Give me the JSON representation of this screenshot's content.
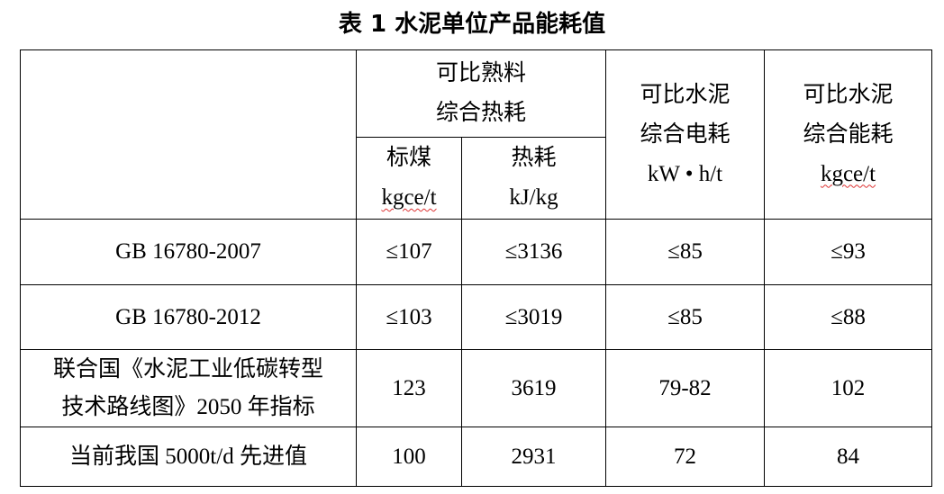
{
  "title": "表 1  水泥单位产品能耗值",
  "table": {
    "header": {
      "clinker": [
        "可比熟料",
        "综合热耗"
      ],
      "clinker_sub": [
        [
          "标煤",
          "kgce/t"
        ],
        [
          "热耗",
          "kJ/kg"
        ]
      ],
      "cement_power": [
        "可比水泥",
        "综合电耗",
        "kW • h/t"
      ],
      "cement_energy": [
        "可比水泥",
        "综合能耗",
        "kgce/t"
      ]
    },
    "rows": [
      [
        "GB 16780-2007",
        "≤107",
        "≤3136",
        "≤85",
        "≤93"
      ],
      [
        "GB 16780-2012",
        "≤103",
        "≤3019",
        "≤85",
        "≤88"
      ],
      [
        [
          "联合国《水泥工业低碳转型",
          "技术路线图》2050 年指标"
        ],
        "123",
        "3619",
        "79-82",
        "102"
      ],
      [
        "当前我国 5000t/d 先进值",
        "100",
        "2931",
        "72",
        "84"
      ]
    ]
  }
}
